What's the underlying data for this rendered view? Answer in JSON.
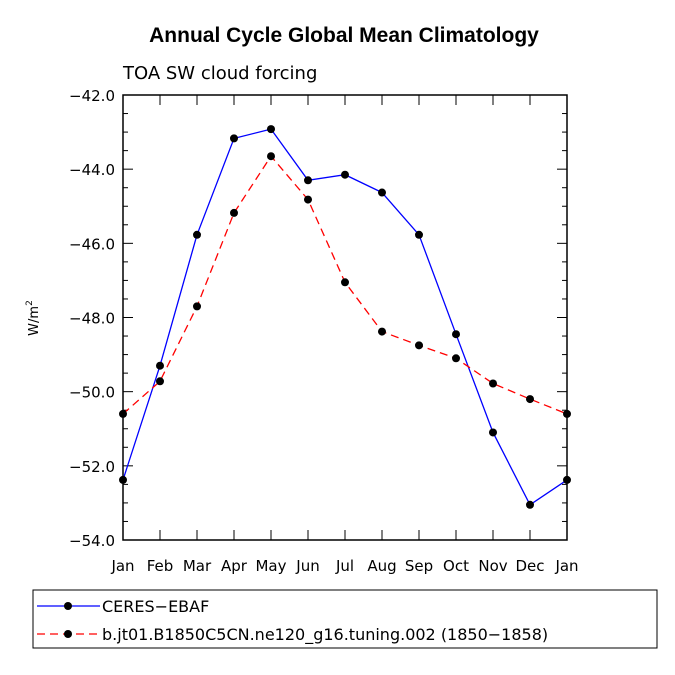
{
  "chart_data": {
    "type": "line",
    "title": "Annual Cycle Global Mean Climatology",
    "subtitle": "TOA SW cloud forcing",
    "xlabel": "",
    "ylabel": "W/m",
    "ylabel_superscript": "2",
    "categories": [
      "Jan",
      "Feb",
      "Mar",
      "Apr",
      "May",
      "Jun",
      "Jul",
      "Aug",
      "Sep",
      "Oct",
      "Nov",
      "Dec",
      "Jan"
    ],
    "ylim": [
      -54.0,
      -42.0
    ],
    "yticks_major": [
      -54.0,
      -52.0,
      -50.0,
      -48.0,
      -46.0,
      -44.0,
      -42.0
    ],
    "ytick_labels": [
      "−54.0",
      "−52.0",
      "−50.0",
      "−48.0",
      "−46.0",
      "−44.0",
      "−42.0"
    ],
    "grid": false,
    "legend_position": "bottom",
    "series": [
      {
        "name": "CERES−EBAF",
        "color": "#0000ff",
        "line_style": "solid",
        "values": [
          -52.38,
          -49.3,
          -45.77,
          -43.17,
          -42.92,
          -44.3,
          -44.15,
          -44.63,
          -45.77,
          -48.45,
          -51.1,
          -53.05,
          -52.38
        ]
      },
      {
        "name": "b.jt01.B1850C5CN.ne120_g16.tuning.002 (1850−1858)",
        "color": "#ff0000",
        "line_style": "dashed",
        "values": [
          -50.6,
          -49.72,
          -47.7,
          -45.18,
          -43.65,
          -44.82,
          -47.05,
          -48.38,
          -48.75,
          -49.1,
          -49.78,
          -50.2,
          -50.6
        ]
      }
    ]
  }
}
